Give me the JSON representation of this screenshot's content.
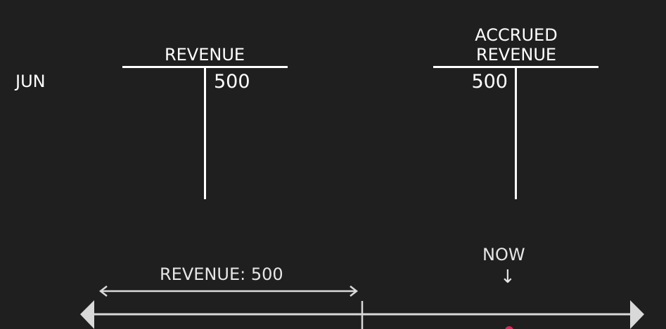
{
  "row_label": "JUN",
  "accounts": [
    {
      "title_lines": [
        "REVENUE"
      ],
      "debit": "",
      "credit": "500"
    },
    {
      "title_lines": [
        "ACCRUED",
        "REVENUE"
      ],
      "debit": "500",
      "credit": ""
    }
  ],
  "timeline": {
    "period_label": "REVENUE: 500",
    "now_label": "NOW",
    "now_arrow": "↓"
  },
  "colors": {
    "background": "#1f1f20",
    "foreground": "#ffffff",
    "timeline": "#d9d9d9",
    "marker": "#e0245e"
  }
}
